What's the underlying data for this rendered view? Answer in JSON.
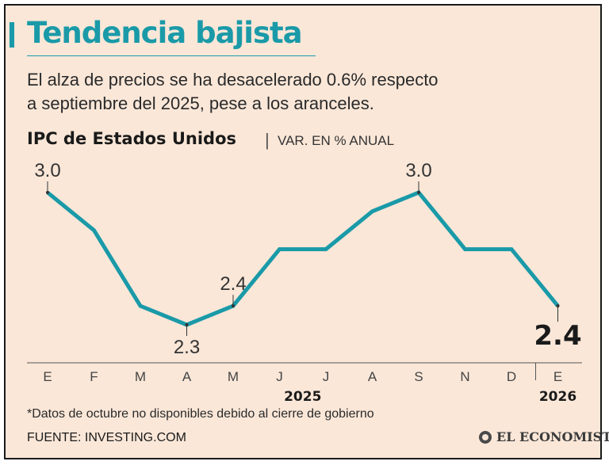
{
  "header": {
    "title": "Tendencia bajista",
    "subtitle_line1": "El alza de precios se ha desacelerado 0.6% respecto",
    "subtitle_line2": "a septiembre del 2025, pese a los aranceles."
  },
  "chart_data": {
    "type": "line",
    "title": "IPC de Estados Unidos",
    "subtitle": "VAR. EN % ANUAL",
    "categories": [
      "E",
      "F",
      "M",
      "A",
      "M",
      "J",
      "J",
      "A",
      "S",
      "N",
      "D",
      "E"
    ],
    "values": [
      3.0,
      2.8,
      2.4,
      2.3,
      2.4,
      2.7,
      2.7,
      2.9,
      3.0,
      2.7,
      2.7,
      2.4
    ],
    "labels": [
      {
        "index": 0,
        "text": "3.0",
        "highlight": false
      },
      {
        "index": 3,
        "text": "2.3",
        "highlight": false
      },
      {
        "index": 4,
        "text": "2.4",
        "highlight": false
      },
      {
        "index": 8,
        "text": "3.0",
        "highlight": false
      },
      {
        "index": 11,
        "text": "2.4",
        "highlight": true
      }
    ],
    "year_labels": [
      {
        "text": "2025",
        "index": 5.5
      },
      {
        "text": "2026",
        "index": 11
      }
    ],
    "ylim": [
      2.3,
      3.0
    ],
    "line_color": "#1a9aa8"
  },
  "footer": {
    "footnote": "*Datos de octubre no disponibles debido al cierre de gobierno",
    "source": "FUENTE: INVESTING.COM",
    "logo": "EL ECONOMISTA",
    "logo_icon": "el-economista-logo-icon"
  },
  "colors": {
    "accent": "#1a9aa8",
    "background": "#fae7d8",
    "text": "#1a1a1a"
  }
}
